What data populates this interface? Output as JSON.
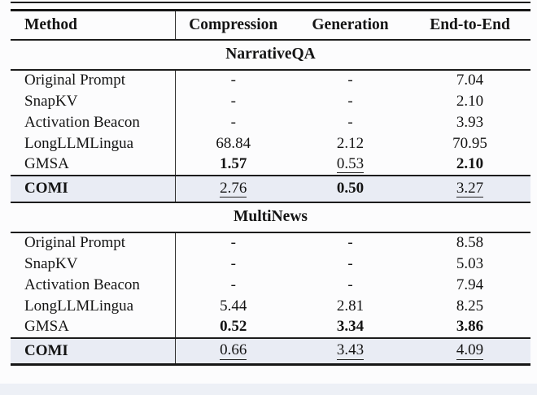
{
  "page": {
    "highlight_color": "#e9ecf4",
    "rule_color": "#1c1c1c",
    "text_color": "#141414"
  },
  "table": {
    "header": {
      "method": "Method",
      "cols": [
        "Compression",
        "Generation",
        "End-to-End"
      ]
    },
    "sections": [
      {
        "title": "NarrativeQA",
        "rows": [
          {
            "cells": [
              {
                "t": "Original Prompt"
              },
              {
                "t": "-"
              },
              {
                "t": "-"
              },
              {
                "t": "7.04"
              }
            ]
          },
          {
            "cells": [
              {
                "t": "SnapKV"
              },
              {
                "t": "-"
              },
              {
                "t": "-"
              },
              {
                "t": "2.10"
              }
            ]
          },
          {
            "cells": [
              {
                "t": "Activation Beacon"
              },
              {
                "t": "-"
              },
              {
                "t": "-"
              },
              {
                "t": "3.93"
              }
            ]
          },
          {
            "cells": [
              {
                "t": "LongLLMLingua"
              },
              {
                "t": "68.84"
              },
              {
                "t": "2.12"
              },
              {
                "t": "70.95"
              }
            ]
          },
          {
            "cells": [
              {
                "t": "GMSA"
              },
              {
                "t": "1.57",
                "bold": true
              },
              {
                "t": "0.53",
                "underline": true
              },
              {
                "t": "2.10",
                "bold": true
              }
            ]
          }
        ],
        "comi": {
          "cells": [
            {
              "t": "COMI",
              "bold": true
            },
            {
              "t": "2.76",
              "underline": true
            },
            {
              "t": "0.50",
              "bold": true
            },
            {
              "t": "3.27",
              "underline": true
            }
          ]
        }
      },
      {
        "title": "MultiNews",
        "rows": [
          {
            "cells": [
              {
                "t": "Original Prompt"
              },
              {
                "t": "-"
              },
              {
                "t": "-"
              },
              {
                "t": "8.58"
              }
            ]
          },
          {
            "cells": [
              {
                "t": "SnapKV"
              },
              {
                "t": "-"
              },
              {
                "t": "-"
              },
              {
                "t": "5.03"
              }
            ]
          },
          {
            "cells": [
              {
                "t": "Activation Beacon"
              },
              {
                "t": "-"
              },
              {
                "t": "-"
              },
              {
                "t": "7.94"
              }
            ]
          },
          {
            "cells": [
              {
                "t": "LongLLMLingua"
              },
              {
                "t": "5.44"
              },
              {
                "t": "2.81"
              },
              {
                "t": "8.25"
              }
            ]
          },
          {
            "cells": [
              {
                "t": "GMSA"
              },
              {
                "t": "0.52",
                "bold": true
              },
              {
                "t": "3.34",
                "bold": true
              },
              {
                "t": "3.86",
                "bold": true
              }
            ]
          }
        ],
        "comi": {
          "cells": [
            {
              "t": "COMI",
              "bold": true
            },
            {
              "t": "0.66",
              "underline": true
            },
            {
              "t": "3.43",
              "underline": true
            },
            {
              "t": "4.09",
              "underline": true
            }
          ]
        }
      }
    ]
  }
}
